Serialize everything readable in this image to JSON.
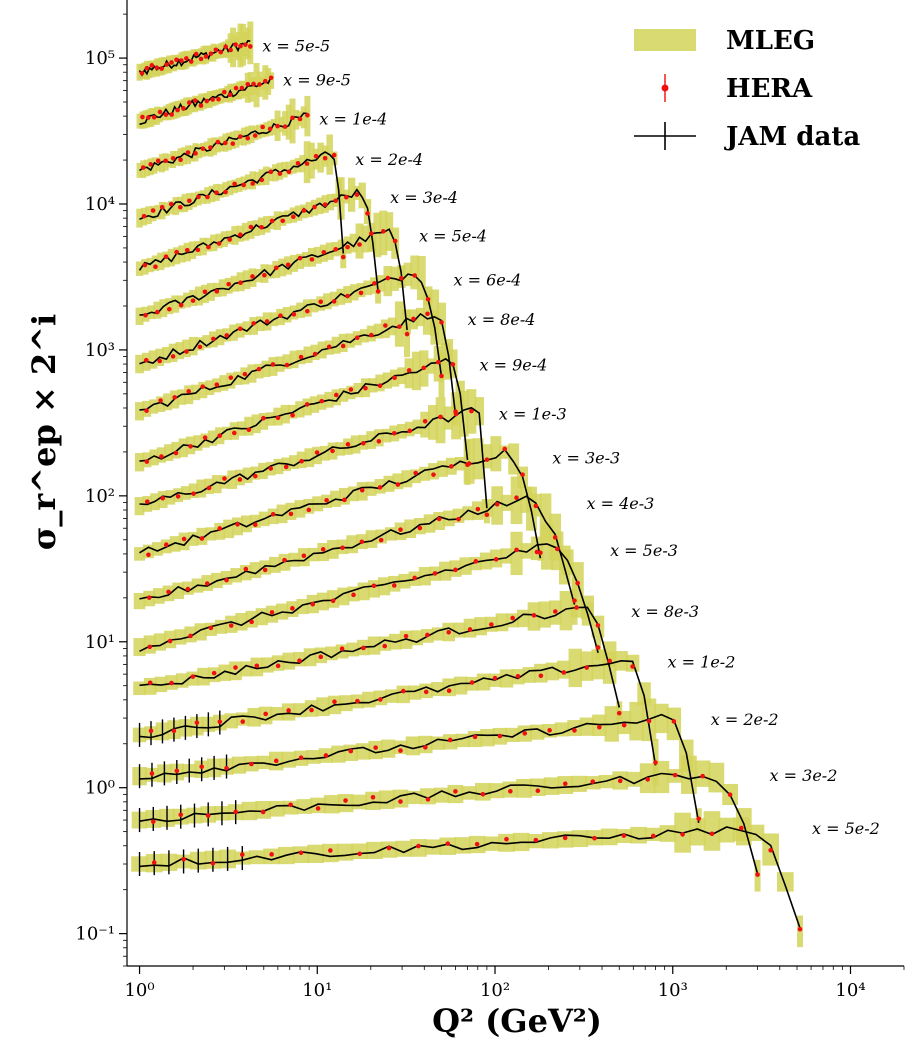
{
  "chart_data": {
    "type": "line",
    "xlabel": "Q² (GeV²)",
    "ylabel": "σ_r^ep × 2^i",
    "x_scale": "log",
    "y_scale": "log",
    "xlim": [
      0.85,
      20000
    ],
    "ylim": [
      0.06,
      250000
    ],
    "x_ticks": [
      {
        "value": 1,
        "label": "10⁰"
      },
      {
        "value": 10,
        "label": "10¹"
      },
      {
        "value": 100,
        "label": "10²"
      },
      {
        "value": 1000,
        "label": "10³"
      },
      {
        "value": 10000,
        "label": "10⁴"
      }
    ],
    "y_ticks": [
      {
        "value": 0.1,
        "label": "10⁻¹"
      },
      {
        "value": 1,
        "label": "10⁰"
      },
      {
        "value": 10,
        "label": "10¹"
      },
      {
        "value": 100,
        "label": "10²"
      },
      {
        "value": 1000,
        "label": "10³"
      },
      {
        "value": 10000,
        "label": "10⁴"
      },
      {
        "value": 100000,
        "label": "10⁵"
      }
    ],
    "legend": {
      "position": "top-right",
      "entries": [
        {
          "label": "MLEG",
          "kind": "band",
          "color": "#d4d45a"
        },
        {
          "label": "HERA",
          "kind": "point",
          "color": "#ee1111"
        },
        {
          "label": "JAM data",
          "kind": "line",
          "color": "#000000"
        }
      ]
    },
    "series": [
      {
        "label": "x = 5e-5",
        "xmin": 1.0,
        "xmax": 4.5,
        "yleft": 80000,
        "yright": 130000,
        "label_y": 120000,
        "drop": 4.2
      },
      {
        "label": "x = 9e-5",
        "xmin": 1.0,
        "xmax": 6.6,
        "yleft": 37000,
        "yright": 75000,
        "label_y": 70000,
        "drop": 5.5
      },
      {
        "label": "x = 1e-4",
        "xmin": 1.0,
        "xmax": 8.8,
        "yleft": 17000,
        "yright": 40000,
        "label_y": 38000,
        "drop": 8.8
      },
      {
        "label": "x = 2e-4",
        "xmin": 1.0,
        "xmax": 12.0,
        "yleft": 8000,
        "yright": 22000,
        "label_y": 20000,
        "drop": 14
      },
      {
        "label": "x = 3e-4",
        "xmin": 1.0,
        "xmax": 17.0,
        "yleft": 3600,
        "yright": 12000,
        "label_y": 11000,
        "drop": 22
      },
      {
        "label": "x = 5e-4",
        "xmin": 1.0,
        "xmax": 25.0,
        "yleft": 1700,
        "yright": 6500,
        "label_y": 6000,
        "drop": 32
      },
      {
        "label": "x = 6e-4",
        "xmin": 1.0,
        "xmax": 35.0,
        "yleft": 800,
        "yright": 3400,
        "label_y": 3000,
        "drop": 50
      },
      {
        "label": "x = 8e-4",
        "xmin": 1.0,
        "xmax": 45.0,
        "yleft": 380,
        "yright": 1800,
        "label_y": 1600,
        "drop": 60
      },
      {
        "label": "x = 9e-4",
        "xmin": 1.0,
        "xmax": 55.0,
        "yleft": 170,
        "yright": 850,
        "label_y": 780,
        "drop": 70
      },
      {
        "label": "x = 1e-3",
        "xmin": 1.0,
        "xmax": 80.0,
        "yleft": 85,
        "yright": 390,
        "label_y": 360,
        "drop": 90
      },
      {
        "label": "x = 3e-3",
        "xmin": 1.0,
        "xmax": 110.0,
        "yleft": 40,
        "yright": 200,
        "label_y": 180,
        "drop": 180
      },
      {
        "label": "x = 4e-3",
        "xmin": 1.0,
        "xmax": 140.0,
        "yleft": 19,
        "yright": 95,
        "label_y": 88,
        "drop": 280
      },
      {
        "label": "x = 5e-3",
        "xmin": 1.0,
        "xmax": 190.0,
        "yleft": 9.2,
        "yright": 45,
        "label_y": 42,
        "drop": 380
      },
      {
        "label": "x = 8e-3",
        "xmin": 1.0,
        "xmax": 300.0,
        "yleft": 4.8,
        "yright": 17,
        "label_y": 16,
        "drop": 500
      },
      {
        "label": "x = 1e-2",
        "xmin": 1.0,
        "xmax": 550.0,
        "yleft": 2.3,
        "yright": 7.5,
        "label_y": 7.2,
        "drop": 800
      },
      {
        "label": "x = 2e-2",
        "xmin": 1.0,
        "xmax": 900.0,
        "yleft": 1.2,
        "yright": 3.0,
        "label_y": 2.9,
        "drop": 1400
      },
      {
        "label": "x = 3e-2",
        "xmin": 1.0,
        "xmax": 1500.0,
        "yleft": 0.6,
        "yright": 1.25,
        "label_y": 1.2,
        "drop": 3000
      },
      {
        "label": "x = 5e-2",
        "xmin": 1.0,
        "xmax": 2500.0,
        "yleft": 0.3,
        "yright": 0.52,
        "label_y": 0.52,
        "drop": 5200
      }
    ]
  }
}
